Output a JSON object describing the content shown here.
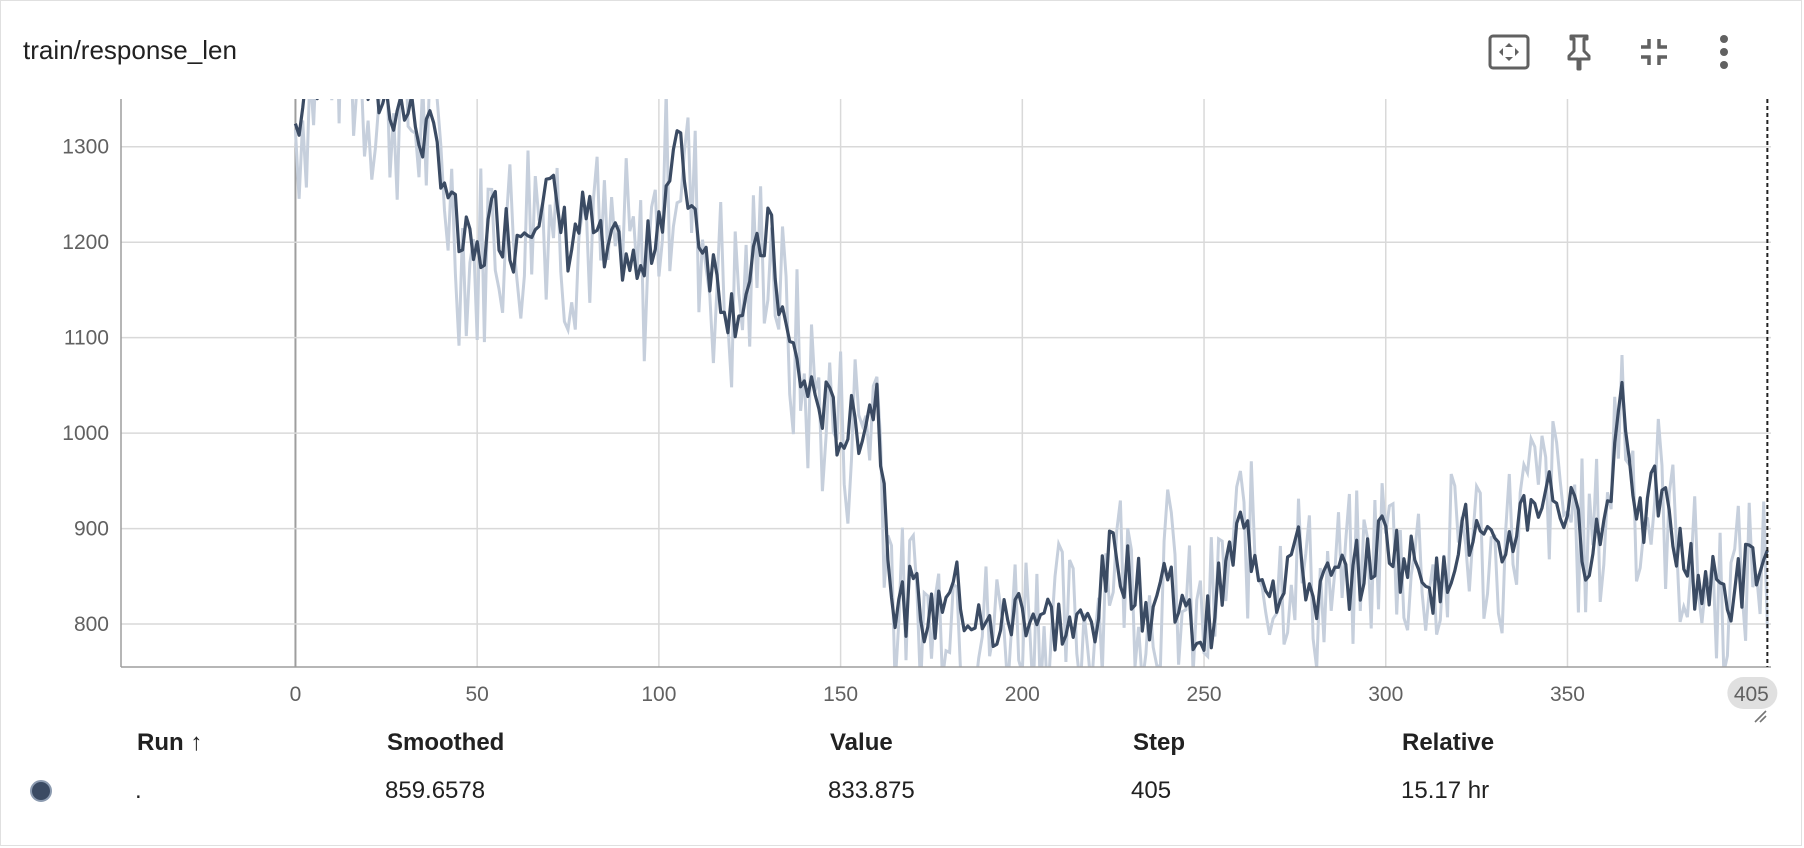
{
  "card": {
    "title": "train/response_len"
  },
  "toolbar": {
    "icons": [
      "fit-to-screen-icon",
      "pin-icon",
      "collapse-icon",
      "more-vert-icon"
    ]
  },
  "chart_data": {
    "type": "line",
    "ylim": [
      755,
      1350
    ],
    "xlim": [
      -48,
      406
    ],
    "x_ticks": [
      "0",
      "50",
      "100",
      "150",
      "200",
      "250",
      "300",
      "350"
    ],
    "y_ticks": [
      "800",
      "900",
      "1000",
      "1100",
      "1200",
      "1300"
    ],
    "x_tick_values": [
      0,
      50,
      100,
      150,
      200,
      250,
      300,
      350
    ],
    "y_tick_values": [
      800,
      900,
      1000,
      1100,
      1200,
      1300
    ],
    "hover_step_label": "405",
    "colors": {
      "smoothed": "#3b4b63",
      "raw": "#c6cfdc",
      "grid": "#d9d9d9"
    },
    "series": [
      {
        "values": [
          [
            0,
            1320
          ],
          [
            10,
            1420
          ],
          [
            20,
            1360
          ],
          [
            30,
            1340
          ],
          [
            40,
            1290
          ],
          [
            45,
            1200
          ],
          [
            50,
            1180
          ],
          [
            55,
            1230
          ],
          [
            60,
            1200
          ],
          [
            65,
            1240
          ],
          [
            70,
            1250
          ],
          [
            75,
            1200
          ],
          [
            80,
            1230
          ],
          [
            85,
            1180
          ],
          [
            90,
            1190
          ],
          [
            95,
            1160
          ],
          [
            100,
            1230
          ],
          [
            105,
            1300
          ],
          [
            110,
            1230
          ],
          [
            115,
            1170
          ],
          [
            120,
            1130
          ],
          [
            125,
            1150
          ],
          [
            130,
            1220
          ],
          [
            135,
            1100
          ],
          [
            140,
            1050
          ],
          [
            145,
            1030
          ],
          [
            150,
            1000
          ],
          [
            155,
            1010
          ],
          [
            160,
            1040
          ],
          [
            165,
            810
          ],
          [
            170,
            830
          ],
          [
            175,
            800
          ],
          [
            180,
            850
          ],
          [
            185,
            810
          ],
          [
            190,
            790
          ],
          [
            195,
            800
          ],
          [
            200,
            820
          ],
          [
            205,
            810
          ],
          [
            210,
            800
          ],
          [
            215,
            790
          ],
          [
            220,
            810
          ],
          [
            225,
            880
          ],
          [
            230,
            850
          ],
          [
            235,
            810
          ],
          [
            240,
            860
          ],
          [
            245,
            800
          ],
          [
            250,
            790
          ],
          [
            255,
            840
          ],
          [
            260,
            900
          ],
          [
            265,
            870
          ],
          [
            270,
            840
          ],
          [
            275,
            880
          ],
          [
            280,
            830
          ],
          [
            285,
            840
          ],
          [
            290,
            850
          ],
          [
            295,
            860
          ],
          [
            300,
            900
          ],
          [
            305,
            860
          ],
          [
            310,
            870
          ],
          [
            315,
            830
          ],
          [
            320,
            900
          ],
          [
            325,
            890
          ],
          [
            330,
            860
          ],
          [
            335,
            900
          ],
          [
            340,
            930
          ],
          [
            345,
            940
          ],
          [
            350,
            920
          ],
          [
            355,
            880
          ],
          [
            360,
            900
          ],
          [
            365,
            1050
          ],
          [
            370,
            900
          ],
          [
            375,
            940
          ],
          [
            380,
            880
          ],
          [
            385,
            850
          ],
          [
            390,
            840
          ],
          [
            395,
            830
          ],
          [
            400,
            860
          ],
          [
            405,
            859.6578
          ]
        ]
      }
    ]
  },
  "table": {
    "headers": {
      "run": "Run ↑",
      "smoothed": "Smoothed",
      "value": "Value",
      "step": "Step",
      "relative": "Relative"
    },
    "row": {
      "run": ".",
      "smoothed": "859.6578",
      "value": "833.875",
      "step": "405",
      "relative": "15.17 hr"
    }
  }
}
